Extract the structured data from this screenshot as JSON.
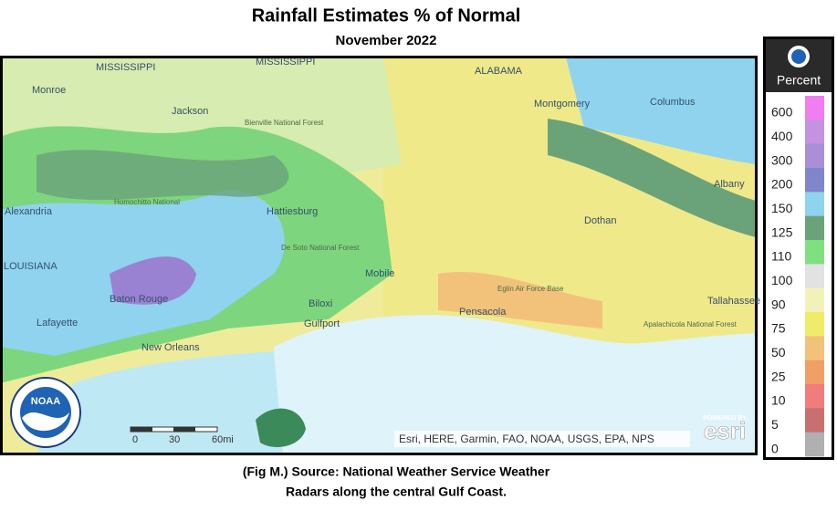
{
  "header": {
    "title": "Rainfall Estimates % of Normal",
    "subtitle": "November 2022"
  },
  "map": {
    "labels": [
      "MISSISSIPPI",
      "MISSISSIPPI",
      "ALABAMA",
      "Monroe",
      "Jackson",
      "Bienville National Forest",
      "Alexandria",
      "Homochitto National",
      "Hattiesburg",
      "De Soto National Forest",
      "LOUISIANA",
      "Baton Rouge",
      "Lafayette",
      "New Orleans",
      "Biloxi",
      "Gulfport",
      "Mobile",
      "Pensacola",
      "Eglin Air Force Base",
      "Montgomery",
      "Columbus",
      "Albany",
      "Dothan",
      "Tallahassee",
      "Apalachicola National Forest"
    ],
    "scale": [
      "0",
      "30",
      "60mi"
    ],
    "attribution": "Esri, HERE, Garmin, FAO, NOAA, USGS, EPA, NPS",
    "logo": {
      "top": "POWERED BY",
      "name": "esri"
    },
    "noaa": "NOAA"
  },
  "legend": {
    "title": "Percent",
    "items": [
      {
        "label": "600",
        "color": "#f07ef0"
      },
      {
        "label": "400",
        "color": "#c493e0"
      },
      {
        "label": "300",
        "color": "#a88fd6"
      },
      {
        "label": "200",
        "color": "#7f86c9"
      },
      {
        "label": "150",
        "color": "#8fd3ee"
      },
      {
        "label": "125",
        "color": "#6aa37a"
      },
      {
        "label": "110",
        "color": "#7ee07e"
      },
      {
        "label": "100",
        "color": "#e2e2e2"
      },
      {
        "label": "90",
        "color": "#f2f2b8"
      },
      {
        "label": "75",
        "color": "#f0ec6a"
      },
      {
        "label": "50",
        "color": "#f2c27a"
      },
      {
        "label": "25",
        "color": "#f0a066"
      },
      {
        "label": "10",
        "color": "#f07c7c"
      },
      {
        "label": "5",
        "color": "#c87070"
      },
      {
        "label": "0",
        "color": "#b0b0b0"
      }
    ]
  },
  "caption": [
    "(Fig M.) Source: National Weather Service Weather",
    "Radars along the central Gulf Coast."
  ]
}
